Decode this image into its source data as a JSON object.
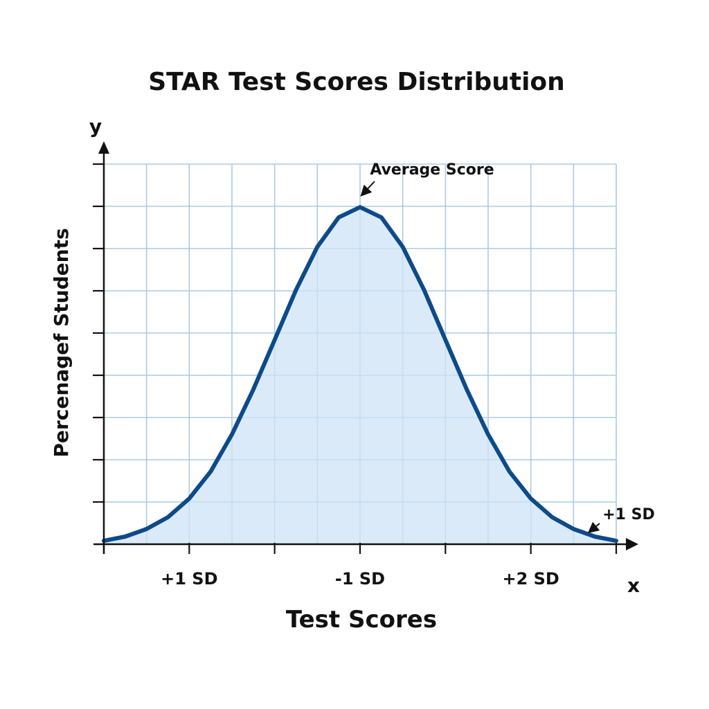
{
  "chart_data": {
    "type": "area",
    "title": "STAR Test Scores Distribution",
    "xlabel": "Test Scores",
    "ylabel": "Percenagef Students",
    "x_axis_letter": "x",
    "y_axis_letter": "y",
    "xlim": [
      -3,
      3
    ],
    "ylim": [
      0,
      0.45
    ],
    "grid": true,
    "legend": "none",
    "x_ticks": [
      -3,
      -2,
      -1,
      0,
      1,
      2,
      3
    ],
    "x_tick_labels": [
      {
        "x": -2,
        "label": "+1 SD"
      },
      {
        "x": 0,
        "label": "-1 SD"
      },
      {
        "x": 2,
        "label": "+2 SD"
      }
    ],
    "y_ticks": [
      0.05,
      0.1,
      0.15,
      0.2,
      0.25,
      0.3,
      0.35,
      0.4,
      0.45
    ],
    "series": [
      {
        "x": [
          -3,
          -2.75,
          -2.5,
          -2.25,
          -2,
          -1.75,
          -1.5,
          -1.25,
          -1,
          -0.75,
          -0.5,
          -0.25,
          0,
          0.25,
          0.5,
          0.75,
          1,
          1.25,
          1.5,
          1.75,
          2,
          2.25,
          2.5,
          2.75,
          3
        ],
        "values": [
          0.004,
          0.009,
          0.018,
          0.032,
          0.054,
          0.086,
          0.13,
          0.183,
          0.242,
          0.301,
          0.352,
          0.387,
          0.399,
          0.387,
          0.352,
          0.301,
          0.242,
          0.183,
          0.13,
          0.086,
          0.054,
          0.032,
          0.018,
          0.009,
          0.004
        ]
      }
    ],
    "annotations": [
      {
        "text": "Average Score",
        "x": 0,
        "y": 0.399
      },
      {
        "text": "+1 SD",
        "x": 3,
        "y": 0.004
      }
    ],
    "colors": {
      "line": "#0d4a8a",
      "fill": "#cfe3f5",
      "grid": "#a9cbe6",
      "axis": "#111111"
    }
  }
}
